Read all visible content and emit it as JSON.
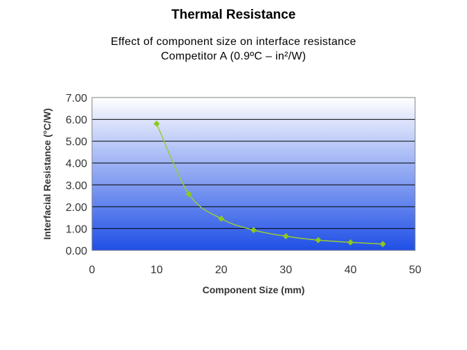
{
  "page": {
    "title": "Thermal Resistance",
    "subtitle_line1": "Effect of component size on interface resistance",
    "subtitle_line2": "Competitor A (0.9ºC – in²/W)"
  },
  "colors": {
    "gradient_top": "#ffffff",
    "gradient_bottom": "#1f4fe6",
    "gridline": "#000000",
    "series_line": "#9acd32",
    "marker": "#8dc81e",
    "axis_text": "#333333"
  },
  "chart_data": {
    "type": "scatter",
    "title": "",
    "xlabel": "Component Size (mm)",
    "ylabel": "Interfacial Resistance (°C/W)",
    "xlim": [
      0,
      50
    ],
    "ylim": [
      0,
      7
    ],
    "x_ticks": [
      "0",
      "10",
      "20",
      "30",
      "40",
      "50"
    ],
    "y_ticks": [
      "0.00",
      "1.00",
      "2.00",
      "3.00",
      "4.00",
      "5.00",
      "6.00",
      "7.00"
    ],
    "grid": true,
    "smooth_line": true,
    "series": [
      {
        "name": "Competitor A",
        "x": [
          10,
          15,
          20,
          25,
          30,
          35,
          40,
          45
        ],
        "y": [
          5.8,
          2.58,
          1.45,
          0.93,
          0.65,
          0.47,
          0.37,
          0.29
        ]
      }
    ]
  }
}
